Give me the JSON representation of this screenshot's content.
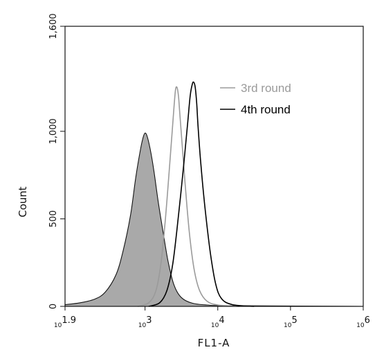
{
  "chart_data": {
    "type": "area",
    "xlabel": "FL1-A",
    "ylabel": "Count",
    "x_scale": "log10",
    "xlim": [
      1.9,
      6
    ],
    "ylim": [
      0,
      1600
    ],
    "xticks": [
      {
        "value": 1.9,
        "label": "10^1.9"
      },
      {
        "value": 3,
        "label": "10^3"
      },
      {
        "value": 4,
        "label": "10^4"
      },
      {
        "value": 5,
        "label": "10^5"
      },
      {
        "value": 6,
        "label": "10^6"
      }
    ],
    "yticks": [
      {
        "value": 0,
        "label": "0"
      },
      {
        "value": 500,
        "label": "500"
      },
      {
        "value": 1000,
        "label": "1,000"
      },
      {
        "value": 1600,
        "label": "1,600"
      }
    ],
    "legend_position": "top-right",
    "grid": false,
    "series": [
      {
        "name": "",
        "style": "filled",
        "fill": "#a9a9a9",
        "stroke": "#111111",
        "x": [
          1.9,
          2.1,
          2.3,
          2.45,
          2.6,
          2.7,
          2.8,
          2.87,
          2.93,
          2.97,
          3.0,
          3.03,
          3.07,
          3.12,
          3.18,
          3.25,
          3.32,
          3.4,
          3.5,
          3.65,
          3.85,
          4.2,
          6.0
        ],
        "y": [
          10,
          20,
          40,
          80,
          180,
          320,
          520,
          730,
          880,
          960,
          990,
          970,
          900,
          780,
          600,
          420,
          250,
          120,
          50,
          18,
          8,
          4,
          0
        ]
      },
      {
        "name": "3rd round",
        "style": "line",
        "stroke": "#9a9a9a",
        "x": [
          2.9,
          3.05,
          3.15,
          3.22,
          3.28,
          3.33,
          3.37,
          3.4,
          3.42,
          3.44,
          3.46,
          3.48,
          3.52,
          3.57,
          3.62,
          3.68,
          3.75,
          3.85,
          4.0,
          4.3
        ],
        "y": [
          0,
          20,
          90,
          250,
          500,
          760,
          980,
          1150,
          1240,
          1250,
          1200,
          1090,
          870,
          600,
          380,
          200,
          90,
          30,
          8,
          0
        ]
      },
      {
        "name": "4th round",
        "style": "line",
        "stroke": "#000000",
        "x": [
          3.05,
          3.2,
          3.3,
          3.38,
          3.45,
          3.52,
          3.58,
          3.62,
          3.65,
          3.67,
          3.69,
          3.71,
          3.73,
          3.77,
          3.83,
          3.9,
          3.97,
          4.05,
          4.2,
          4.5
        ],
        "y": [
          0,
          20,
          90,
          240,
          480,
          760,
          1020,
          1200,
          1270,
          1280,
          1250,
          1160,
          1020,
          800,
          540,
          300,
          130,
          45,
          10,
          0
        ]
      }
    ]
  }
}
